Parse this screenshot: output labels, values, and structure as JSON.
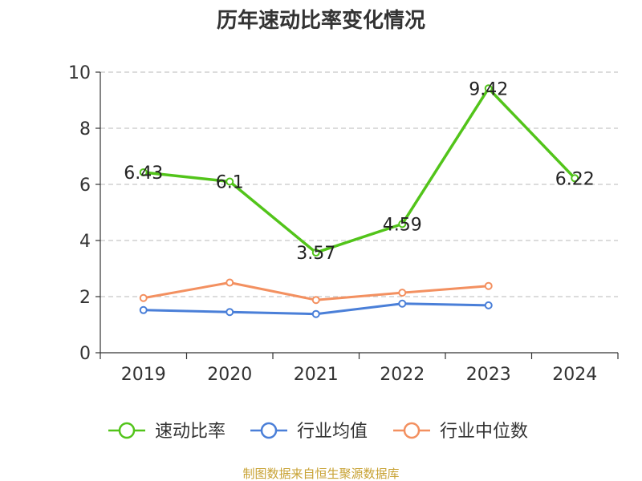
{
  "chart_data": {
    "type": "line",
    "title": "历年速动比率变化情况",
    "categories": [
      "2019",
      "2020",
      "2021",
      "2022",
      "2023",
      "2024"
    ],
    "ylim": [
      0,
      10
    ],
    "yticks": [
      0,
      2,
      4,
      6,
      8,
      10
    ],
    "grid": true,
    "legend_position": "bottom",
    "series": [
      {
        "name": "速动比率",
        "color": "#52c41a",
        "values": [
          6.43,
          6.1,
          3.57,
          4.59,
          9.42,
          6.22
        ],
        "labels": [
          "6.43",
          "6.1",
          "3.57",
          "4.59",
          "9.42",
          "6.22"
        ]
      },
      {
        "name": "行业均值",
        "color": "#4a7fd8",
        "values": [
          1.52,
          1.45,
          1.38,
          1.75,
          1.69,
          null
        ]
      },
      {
        "name": "行业中位数",
        "color": "#f39060",
        "values": [
          1.95,
          2.5,
          1.88,
          2.14,
          2.38,
          null
        ]
      }
    ]
  },
  "source": "制图数据来自恒生聚源数据库"
}
